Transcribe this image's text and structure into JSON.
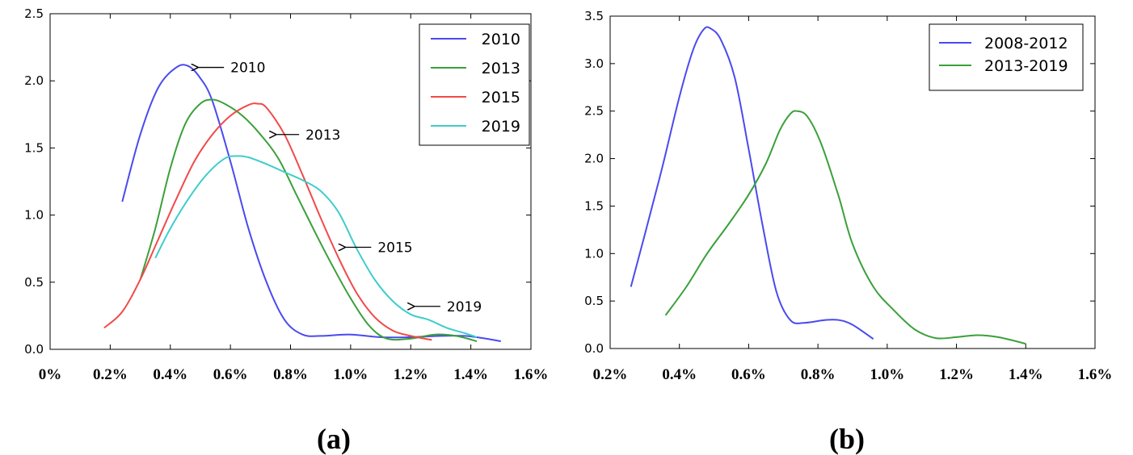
{
  "chart_data": [
    {
      "type": "line",
      "panel_label": "(a)",
      "x_tick_labels": [
        "0%",
        "0.2%",
        "0.4%",
        "0.6%",
        "0.8%",
        "1.0%",
        "1.2%",
        "1.4%",
        "1.6%"
      ],
      "y_tick_labels": [
        "0.0",
        "0.5",
        "1.0",
        "1.5",
        "2.0",
        "2.5"
      ],
      "xlim": [
        0,
        1.6
      ],
      "ylim": [
        0,
        2.5
      ],
      "grid": false,
      "legend": "top-right",
      "series": [
        {
          "name": "2010",
          "color": "#4a4af0",
          "points": [
            [
              0.24,
              1.1
            ],
            [
              0.3,
              1.6
            ],
            [
              0.36,
              1.95
            ],
            [
              0.42,
              2.1
            ],
            [
              0.46,
              2.11
            ],
            [
              0.5,
              2.02
            ],
            [
              0.54,
              1.85
            ],
            [
              0.6,
              1.4
            ],
            [
              0.66,
              0.9
            ],
            [
              0.72,
              0.5
            ],
            [
              0.78,
              0.22
            ],
            [
              0.84,
              0.11
            ],
            [
              0.9,
              0.1
            ],
            [
              1.0,
              0.11
            ],
            [
              1.1,
              0.09
            ],
            [
              1.2,
              0.09
            ],
            [
              1.3,
              0.1
            ],
            [
              1.38,
              0.1
            ],
            [
              1.45,
              0.08
            ],
            [
              1.5,
              0.06
            ]
          ]
        },
        {
          "name": "2013",
          "color": "#3aa03a",
          "points": [
            [
              0.3,
              0.52
            ],
            [
              0.35,
              0.9
            ],
            [
              0.4,
              1.35
            ],
            [
              0.45,
              1.68
            ],
            [
              0.5,
              1.83
            ],
            [
              0.54,
              1.86
            ],
            [
              0.58,
              1.83
            ],
            [
              0.64,
              1.74
            ],
            [
              0.7,
              1.6
            ],
            [
              0.76,
              1.42
            ],
            [
              0.82,
              1.15
            ],
            [
              0.88,
              0.88
            ],
            [
              0.94,
              0.62
            ],
            [
              1.0,
              0.38
            ],
            [
              1.06,
              0.18
            ],
            [
              1.12,
              0.08
            ],
            [
              1.2,
              0.08
            ],
            [
              1.28,
              0.11
            ],
            [
              1.35,
              0.1
            ],
            [
              1.42,
              0.06
            ]
          ]
        },
        {
          "name": "2015",
          "color": "#f04a4a",
          "points": [
            [
              0.18,
              0.16
            ],
            [
              0.24,
              0.28
            ],
            [
              0.3,
              0.52
            ],
            [
              0.36,
              0.82
            ],
            [
              0.42,
              1.12
            ],
            [
              0.48,
              1.4
            ],
            [
              0.54,
              1.6
            ],
            [
              0.6,
              1.74
            ],
            [
              0.66,
              1.82
            ],
            [
              0.69,
              1.83
            ],
            [
              0.72,
              1.8
            ],
            [
              0.78,
              1.6
            ],
            [
              0.84,
              1.3
            ],
            [
              0.9,
              0.98
            ],
            [
              0.96,
              0.68
            ],
            [
              1.02,
              0.42
            ],
            [
              1.08,
              0.24
            ],
            [
              1.14,
              0.14
            ],
            [
              1.2,
              0.1
            ],
            [
              1.27,
              0.07
            ]
          ]
        },
        {
          "name": "2019",
          "color": "#40cccc",
          "points": [
            [
              0.35,
              0.68
            ],
            [
              0.4,
              0.9
            ],
            [
              0.46,
              1.12
            ],
            [
              0.52,
              1.3
            ],
            [
              0.58,
              1.42
            ],
            [
              0.62,
              1.44
            ],
            [
              0.66,
              1.43
            ],
            [
              0.72,
              1.38
            ],
            [
              0.78,
              1.32
            ],
            [
              0.84,
              1.26
            ],
            [
              0.9,
              1.18
            ],
            [
              0.96,
              1.02
            ],
            [
              1.02,
              0.75
            ],
            [
              1.08,
              0.52
            ],
            [
              1.14,
              0.36
            ],
            [
              1.2,
              0.26
            ],
            [
              1.26,
              0.22
            ],
            [
              1.32,
              0.16
            ],
            [
              1.38,
              0.12
            ],
            [
              1.42,
              0.09
            ]
          ]
        }
      ],
      "annotations": [
        {
          "text": "2010",
          "x": 0.6,
          "y": 2.1,
          "arrow_to": [
            0.48,
            2.1
          ]
        },
        {
          "text": "2013",
          "x": 0.85,
          "y": 1.6,
          "arrow_to": [
            0.74,
            1.6
          ]
        },
        {
          "text": "2015",
          "x": 1.09,
          "y": 0.76,
          "arrow_to": [
            0.97,
            0.76
          ]
        },
        {
          "text": "2019",
          "x": 1.32,
          "y": 0.32,
          "arrow_to": [
            1.2,
            0.32
          ]
        }
      ]
    },
    {
      "type": "line",
      "panel_label": "(b)",
      "x_tick_labels": [
        "0.2%",
        "0.4%",
        "0.6%",
        "0.8%",
        "1.0%",
        "1.2%",
        "1.4%",
        "1.6%"
      ],
      "y_tick_labels": [
        "0.0",
        "0.5",
        "1.0",
        "1.5",
        "2.0",
        "2.5",
        "3.0",
        "3.5"
      ],
      "xlim": [
        0.2,
        1.6
      ],
      "ylim": [
        0,
        3.5
      ],
      "grid": false,
      "legend": "top-right",
      "series": [
        {
          "name": "2008-2012",
          "color": "#4a4af0",
          "points": [
            [
              0.26,
              0.65
            ],
            [
              0.3,
              1.2
            ],
            [
              0.35,
              1.9
            ],
            [
              0.4,
              2.65
            ],
            [
              0.44,
              3.15
            ],
            [
              0.47,
              3.36
            ],
            [
              0.49,
              3.37
            ],
            [
              0.52,
              3.25
            ],
            [
              0.56,
              2.85
            ],
            [
              0.6,
              2.1
            ],
            [
              0.64,
              1.3
            ],
            [
              0.68,
              0.6
            ],
            [
              0.72,
              0.3
            ],
            [
              0.76,
              0.27
            ],
            [
              0.82,
              0.3
            ],
            [
              0.86,
              0.3
            ],
            [
              0.9,
              0.25
            ],
            [
              0.96,
              0.1
            ]
          ]
        },
        {
          "name": "2013-2019",
          "color": "#3aa03a",
          "points": [
            [
              0.36,
              0.35
            ],
            [
              0.42,
              0.65
            ],
            [
              0.48,
              1.0
            ],
            [
              0.54,
              1.3
            ],
            [
              0.6,
              1.62
            ],
            [
              0.65,
              1.95
            ],
            [
              0.69,
              2.3
            ],
            [
              0.72,
              2.47
            ],
            [
              0.74,
              2.5
            ],
            [
              0.77,
              2.44
            ],
            [
              0.81,
              2.15
            ],
            [
              0.86,
              1.6
            ],
            [
              0.9,
              1.1
            ],
            [
              0.96,
              0.65
            ],
            [
              1.02,
              0.4
            ],
            [
              1.08,
              0.2
            ],
            [
              1.14,
              0.11
            ],
            [
              1.2,
              0.12
            ],
            [
              1.26,
              0.14
            ],
            [
              1.32,
              0.12
            ],
            [
              1.4,
              0.05
            ]
          ]
        }
      ]
    }
  ]
}
